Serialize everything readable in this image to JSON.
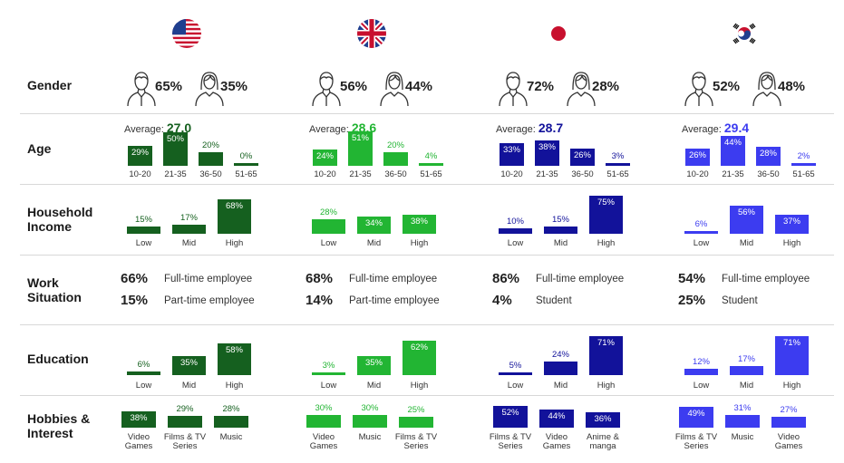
{
  "row_labels": [
    "Gender",
    "Age",
    "Household\nIncome",
    "Work\nSituation",
    "Education",
    "Hobbies &\nInterest"
  ],
  "average_label": "Average:",
  "countries": [
    {
      "key": "us",
      "flag": "us-flag-icon",
      "color": "#15601f",
      "text_color": "#15601f",
      "label_color": "#ffffff",
      "gender": {
        "male": "65%",
        "female": "35%"
      },
      "age": {
        "average": "27.0",
        "categories": [
          "10-20",
          "21-35",
          "36-50",
          "51-65"
        ],
        "values": [
          29,
          50,
          20,
          0
        ],
        "labels": [
          "29%",
          "50%",
          "20%",
          "0%"
        ]
      },
      "income": {
        "categories": [
          "Low",
          "Mid",
          "High"
        ],
        "values": [
          15,
          17,
          68
        ],
        "labels": [
          "15%",
          "17%",
          "68%"
        ]
      },
      "work": [
        {
          "pct": "66%",
          "label": "Full-time employee"
        },
        {
          "pct": "15%",
          "label": "Part-time employee"
        }
      ],
      "education": {
        "categories": [
          "Low",
          "Mid",
          "High"
        ],
        "values": [
          6,
          35,
          58
        ],
        "labels": [
          "6%",
          "35%",
          "58%"
        ]
      },
      "hobbies": {
        "categories": [
          "Video\nGames",
          "Films & TV\nSeries",
          "Music"
        ],
        "values": [
          38,
          29,
          28
        ],
        "labels": [
          "38%",
          "29%",
          "28%"
        ]
      }
    },
    {
      "key": "uk",
      "flag": "uk-flag-icon",
      "color": "#22b533",
      "text_color": "#22b533",
      "label_color": "#ffffff",
      "gender": {
        "male": "56%",
        "female": "44%"
      },
      "age": {
        "average": "28.6",
        "categories": [
          "10-20",
          "21-35",
          "36-50",
          "51-65"
        ],
        "values": [
          24,
          51,
          20,
          4
        ],
        "labels": [
          "24%",
          "51%",
          "20%",
          "4%"
        ]
      },
      "income": {
        "categories": [
          "Low",
          "Mid",
          "High"
        ],
        "values": [
          28,
          34,
          38
        ],
        "labels": [
          "28%",
          "34%",
          "38%"
        ]
      },
      "work": [
        {
          "pct": "68%",
          "label": "Full-time employee"
        },
        {
          "pct": "14%",
          "label": "Part-time employee"
        }
      ],
      "education": {
        "categories": [
          "Low",
          "Mid",
          "High"
        ],
        "values": [
          3,
          35,
          62
        ],
        "labels": [
          "3%",
          "35%",
          "62%"
        ]
      },
      "hobbies": {
        "categories": [
          "Video\nGames",
          "Music",
          "Films & TV\nSeries"
        ],
        "values": [
          30,
          30,
          25
        ],
        "labels": [
          "30%",
          "30%",
          "25%"
        ]
      }
    },
    {
      "key": "jp",
      "flag": "japan-flag-icon",
      "color": "#12129a",
      "text_color": "#12129a",
      "label_color": "#ffffff",
      "gender": {
        "male": "72%",
        "female": "28%"
      },
      "age": {
        "average": "28.7",
        "categories": [
          "10-20",
          "21-35",
          "36-50",
          "51-65"
        ],
        "values": [
          33,
          38,
          26,
          3
        ],
        "labels": [
          "33%",
          "38%",
          "26%",
          "3%"
        ]
      },
      "income": {
        "categories": [
          "Low",
          "Mid",
          "High"
        ],
        "values": [
          10,
          15,
          75
        ],
        "labels": [
          "10%",
          "15%",
          "75%"
        ]
      },
      "work": [
        {
          "pct": "86%",
          "label": "Full-time employee"
        },
        {
          "pct": "4%",
          "label": "Student"
        }
      ],
      "education": {
        "categories": [
          "Low",
          "Mid",
          "High"
        ],
        "values": [
          5,
          24,
          71
        ],
        "labels": [
          "5%",
          "24%",
          "71%"
        ]
      },
      "hobbies": {
        "categories": [
          "Films & TV\nSeries",
          "Video\nGames",
          "Anime &\nmanga"
        ],
        "values": [
          52,
          44,
          36
        ],
        "labels": [
          "52%",
          "44%",
          "36%"
        ]
      }
    },
    {
      "key": "kr",
      "flag": "korea-flag-icon",
      "color": "#3c3cf0",
      "text_color": "#3c3cf0",
      "label_color": "#ffffff",
      "gender": {
        "male": "52%",
        "female": "48%"
      },
      "age": {
        "average": "29.4",
        "categories": [
          "10-20",
          "21-35",
          "36-50",
          "51-65"
        ],
        "values": [
          26,
          44,
          28,
          2
        ],
        "labels": [
          "26%",
          "44%",
          "28%",
          "2%"
        ]
      },
      "income": {
        "categories": [
          "Low",
          "Mid",
          "High"
        ],
        "values": [
          6,
          56,
          37
        ],
        "labels": [
          "6%",
          "56%",
          "37%"
        ]
      },
      "work": [
        {
          "pct": "54%",
          "label": "Full-time employee"
        },
        {
          "pct": "25%",
          "label": "Student"
        }
      ],
      "education": {
        "categories": [
          "Low",
          "Mid",
          "High"
        ],
        "values": [
          12,
          17,
          71
        ],
        "labels": [
          "12%",
          "17%",
          "71%"
        ]
      },
      "hobbies": {
        "categories": [
          "Films & TV\nSeries",
          "Music",
          "Video\nGames"
        ],
        "values": [
          49,
          31,
          27
        ],
        "labels": [
          "49%",
          "31%",
          "27%"
        ]
      }
    }
  ],
  "chart_data": {
    "type": "bar",
    "panels": [
      "Age",
      "Household Income",
      "Education",
      "Hobbies & Interest"
    ],
    "series": [
      {
        "name": "US",
        "age": [
          29,
          50,
          20,
          0
        ],
        "income": [
          15,
          17,
          68
        ],
        "education": [
          6,
          35,
          58
        ],
        "hobbies": [
          38,
          29,
          28
        ]
      },
      {
        "name": "UK",
        "age": [
          24,
          51,
          20,
          4
        ],
        "income": [
          28,
          34,
          38
        ],
        "education": [
          3,
          35,
          62
        ],
        "hobbies": [
          30,
          30,
          25
        ]
      },
      {
        "name": "Japan",
        "age": [
          33,
          38,
          26,
          3
        ],
        "income": [
          10,
          15,
          75
        ],
        "education": [
          5,
          24,
          71
        ],
        "hobbies": [
          52,
          44,
          36
        ]
      },
      {
        "name": "Korea",
        "age": [
          26,
          44,
          28,
          2
        ],
        "income": [
          6,
          56,
          37
        ],
        "education": [
          12,
          17,
          71
        ],
        "hobbies": [
          49,
          31,
          27
        ]
      }
    ]
  }
}
